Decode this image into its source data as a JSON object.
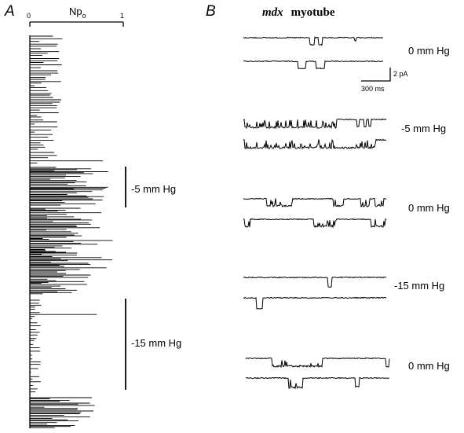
{
  "panel_a": {
    "letter": "A",
    "axis_label": "Np",
    "axis_label_sub": "o",
    "tick_min": "0",
    "tick_max": "1",
    "annotations": [
      {
        "label": "-5 mm Hg"
      },
      {
        "label": "-15 mm Hg"
      }
    ]
  },
  "panel_b": {
    "letter": "B",
    "title_italic": "mdx",
    "title_rest": "myotube",
    "scale_current": "2 pA",
    "scale_time": "300 ms",
    "trace_groups": [
      {
        "label": "0 mm Hg"
      },
      {
        "label": "-5 mm Hg"
      },
      {
        "label": "0 mm Hg"
      },
      {
        "label": "-15 mm Hg"
      },
      {
        "label": "0 mm Hg"
      }
    ]
  }
}
